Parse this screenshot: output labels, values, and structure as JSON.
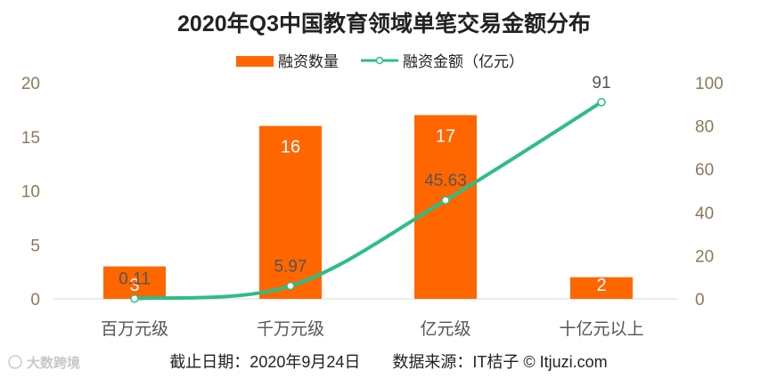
{
  "chart_data": {
    "type": "bar",
    "title": "2020年Q3中国教育领域单笔交易金额分布",
    "categories": [
      "百万元级",
      "千万元级",
      "亿元级",
      "十亿元以上"
    ],
    "series": [
      {
        "name": "融资数量",
        "type": "bar",
        "axis": "left",
        "color": "#ff6600",
        "values": [
          3,
          16,
          17,
          2
        ]
      },
      {
        "name": "融资金额（亿元）",
        "type": "line",
        "axis": "right",
        "color": "#2ebd85",
        "values": [
          0.11,
          5.97,
          45.63,
          91
        ]
      }
    ],
    "y_left": {
      "min": 0,
      "max": 20,
      "ticks": [
        0,
        5,
        10,
        15,
        20
      ]
    },
    "y_right": {
      "min": 0,
      "max": 100,
      "ticks": [
        0,
        20,
        40,
        60,
        80,
        100
      ]
    },
    "legend_position": "top-center"
  },
  "footer": "截止日期：2020年9月24日　　数据来源：IT桔子 © Itjuzi.com",
  "watermark": "大数跨境"
}
